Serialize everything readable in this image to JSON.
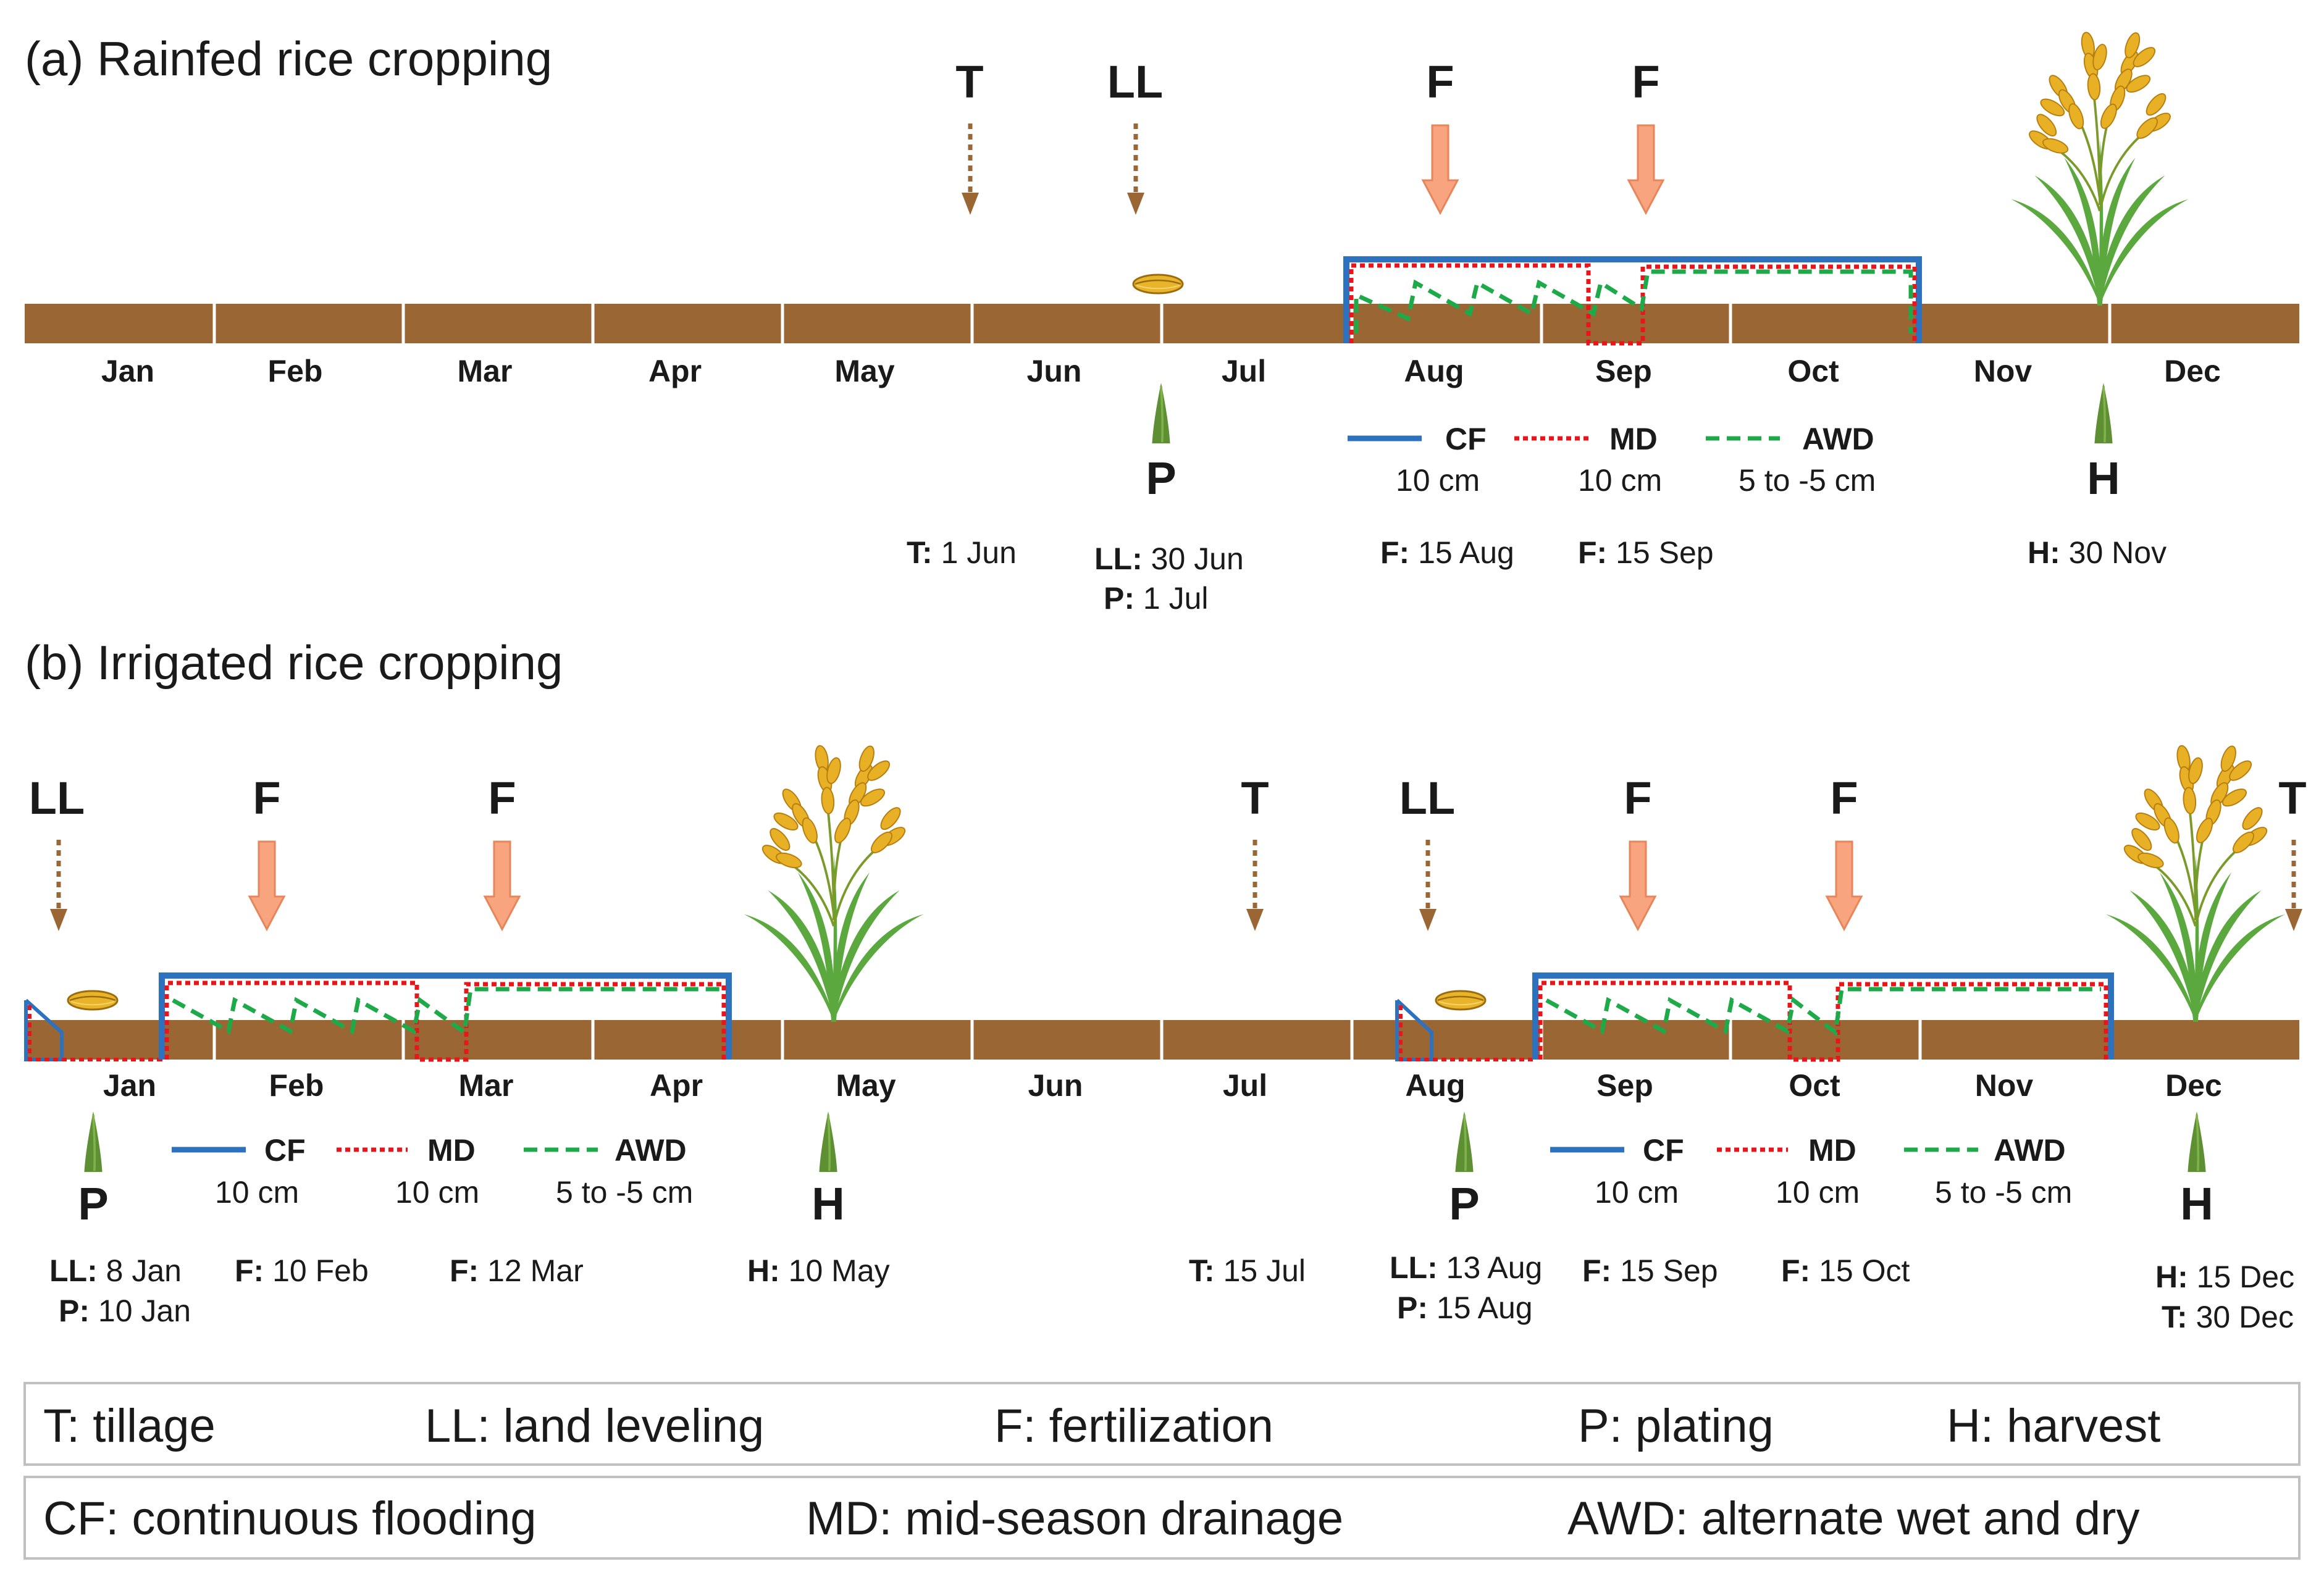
{
  "panel_a": {
    "title": "(a) Rainfed rice cropping",
    "months": [
      "Jan",
      "Feb",
      "Mar",
      "Apr",
      "May",
      "Jun",
      "Jul",
      "Aug",
      "Sep",
      "Oct",
      "Nov",
      "Dec"
    ],
    "top_labels": {
      "tillage": "T",
      "leveling": "LL",
      "fert1": "F",
      "fert2": "F"
    },
    "bottom_labels": {
      "planting": "P",
      "harvest": "H"
    },
    "legend": {
      "cf_name": "CF",
      "cf_depth": "10 cm",
      "md_name": "MD",
      "md_depth": "10 cm",
      "awd_name": "AWD",
      "awd_depth": "5 to -5 cm"
    },
    "annotations": {
      "tillage": {
        "label": "T:",
        "date": "1 Jun"
      },
      "leveling": {
        "label": "LL:",
        "date": "30 Jun"
      },
      "planting": {
        "label": "P:",
        "date": "1 Jul"
      },
      "fert1": {
        "label": "F:",
        "date": "15 Aug"
      },
      "fert2": {
        "label": "F:",
        "date": "15 Sep"
      },
      "harvest": {
        "label": "H:",
        "date": "30 Nov"
      }
    }
  },
  "panel_b": {
    "title": "(b) Irrigated rice cropping",
    "months": [
      "Jan",
      "Feb",
      "Mar",
      "Apr",
      "May",
      "Jun",
      "Jul",
      "Aug",
      "Sep",
      "Oct",
      "Nov",
      "Dec"
    ],
    "top_labels": {
      "leveling1": "LL",
      "fert1": "F",
      "fert2": "F",
      "tillage1": "T",
      "leveling2": "LL",
      "fert3": "F",
      "fert4": "F",
      "tillage2": "T"
    },
    "bottom_labels": {
      "planting1": "P",
      "harvest1": "H",
      "planting2": "P",
      "harvest2": "H"
    },
    "legend1": {
      "cf_name": "CF",
      "cf_depth": "10 cm",
      "md_name": "MD",
      "md_depth": "10 cm",
      "awd_name": "AWD",
      "awd_depth": "5 to -5 cm"
    },
    "legend2": {
      "cf_name": "CF",
      "cf_depth": "10 cm",
      "md_name": "MD",
      "md_depth": "10 cm",
      "awd_name": "AWD",
      "awd_depth": "5 to -5 cm"
    },
    "annotations": {
      "leveling1": {
        "label": "LL:",
        "date": "8 Jan"
      },
      "planting1": {
        "label": "P:",
        "date": "10 Jan"
      },
      "fert1": {
        "label": "F:",
        "date": "10 Feb"
      },
      "fert2": {
        "label": "F:",
        "date": "12 Mar"
      },
      "harvest1": {
        "label": "H:",
        "date": "10 May"
      },
      "tillage1": {
        "label": "T:",
        "date": "15 Jul"
      },
      "leveling2": {
        "label": "LL:",
        "date": "13 Aug"
      },
      "planting2": {
        "label": "P:",
        "date": "15 Aug"
      },
      "fert3": {
        "label": "F:",
        "date": "15 Sep"
      },
      "fert4": {
        "label": "F:",
        "date": "15 Oct"
      },
      "harvest2": {
        "label": "H:",
        "date": "15 Dec"
      },
      "tillage2": {
        "label": "T:",
        "date": "30 Dec"
      }
    }
  },
  "key_box_1": {
    "tillage": "T: tillage",
    "leveling": "LL: land leveling",
    "fertilization": "F: fertilization",
    "planting": "P: plating",
    "harvest": "H: harvest"
  },
  "key_box_2": {
    "cf": "CF: continuous flooding",
    "md": "MD: mid-season drainage",
    "awd": "AWD: alternate wet and dry"
  },
  "colors": {
    "soil": "#9a6634",
    "cf": "#2d72bf",
    "md": "#e8161b",
    "awd": "#1faa4a",
    "fertilizer_arrow": "#f7a47f",
    "fertilizer_border": "#e7855b",
    "tillage_arrow": "#9a6634",
    "sprout": "#5e8f32",
    "grain": "#d39a1a",
    "box_border": "#c0c0c0"
  }
}
